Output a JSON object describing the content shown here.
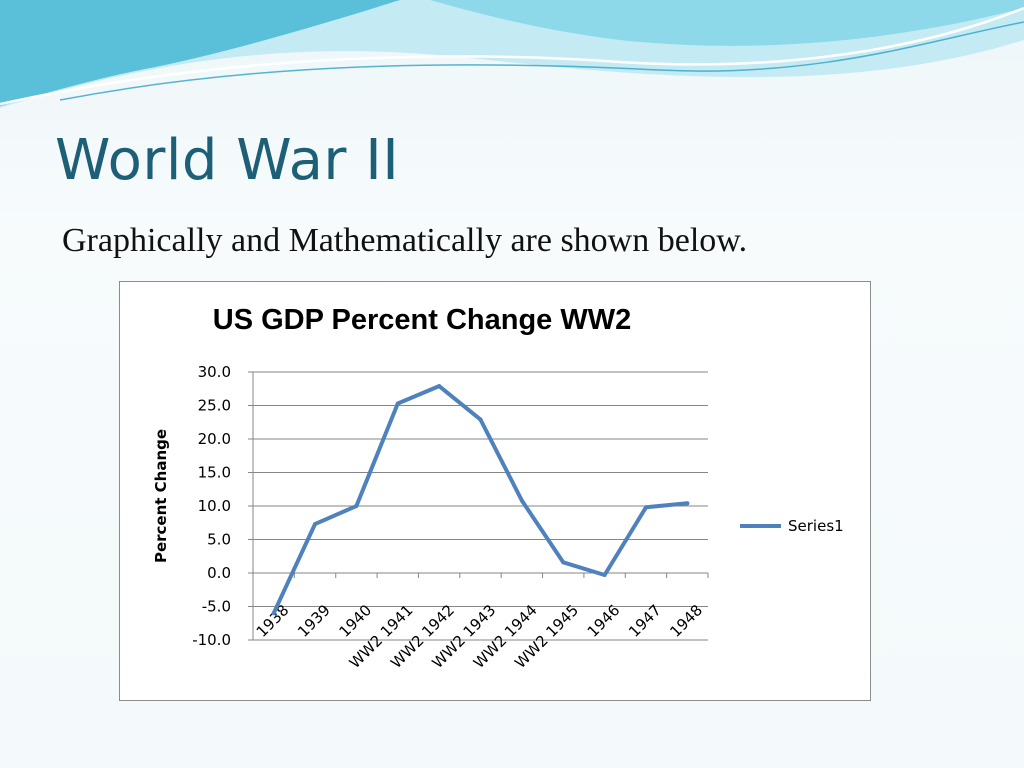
{
  "slide": {
    "title": "World War II",
    "subtitle": "Graphically and Mathematically are shown below."
  },
  "colors": {
    "title": "#1c5f76",
    "series": "#4f81bd",
    "wave_light": "#bfe9f1",
    "wave_dark": "#3fb3d1"
  },
  "chart_data": {
    "type": "line",
    "title": "US GDP  Percent Change WW2",
    "xlabel": "",
    "ylabel": "Percent Change",
    "categories": [
      "1938",
      "1939",
      "1940",
      "WW2 1941",
      "WW2 1942",
      "WW2 1943",
      "WW2 1944",
      "WW2 1945",
      "1946",
      "1947",
      "1948"
    ],
    "series": [
      {
        "name": "Series1",
        "values": [
          -6.0,
          7.3,
          10.0,
          25.3,
          27.9,
          22.9,
          10.8,
          1.6,
          -0.3,
          9.8,
          10.4
        ]
      }
    ],
    "y_ticks": [
      "30.0",
      "25.0",
      "20.0",
      "15.0",
      "10.0",
      "5.0",
      "0.0",
      "-5.0",
      "-10.0"
    ],
    "ylim": [
      -10,
      30
    ],
    "grid": "horizontal",
    "legend": "right"
  }
}
